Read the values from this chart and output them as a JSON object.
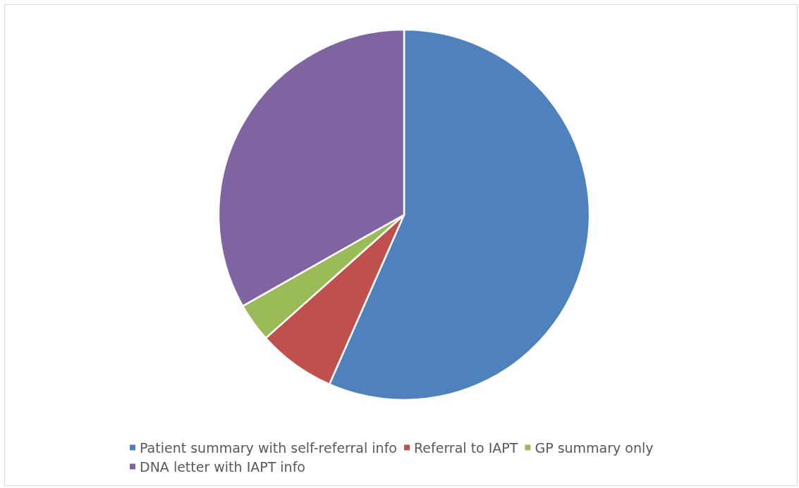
{
  "chart_data": {
    "type": "pie",
    "categories": [
      "Patient summary with self-referral info",
      "Referral to IAPT",
      "GP summary only",
      "DNA letter with IAPT info"
    ],
    "values": [
      56.6,
      6.8,
      3.4,
      33.2
    ],
    "colors": [
      "#4f81bd",
      "#c0504d",
      "#9bbb59",
      "#8064a2"
    ],
    "legend": "bottom"
  }
}
